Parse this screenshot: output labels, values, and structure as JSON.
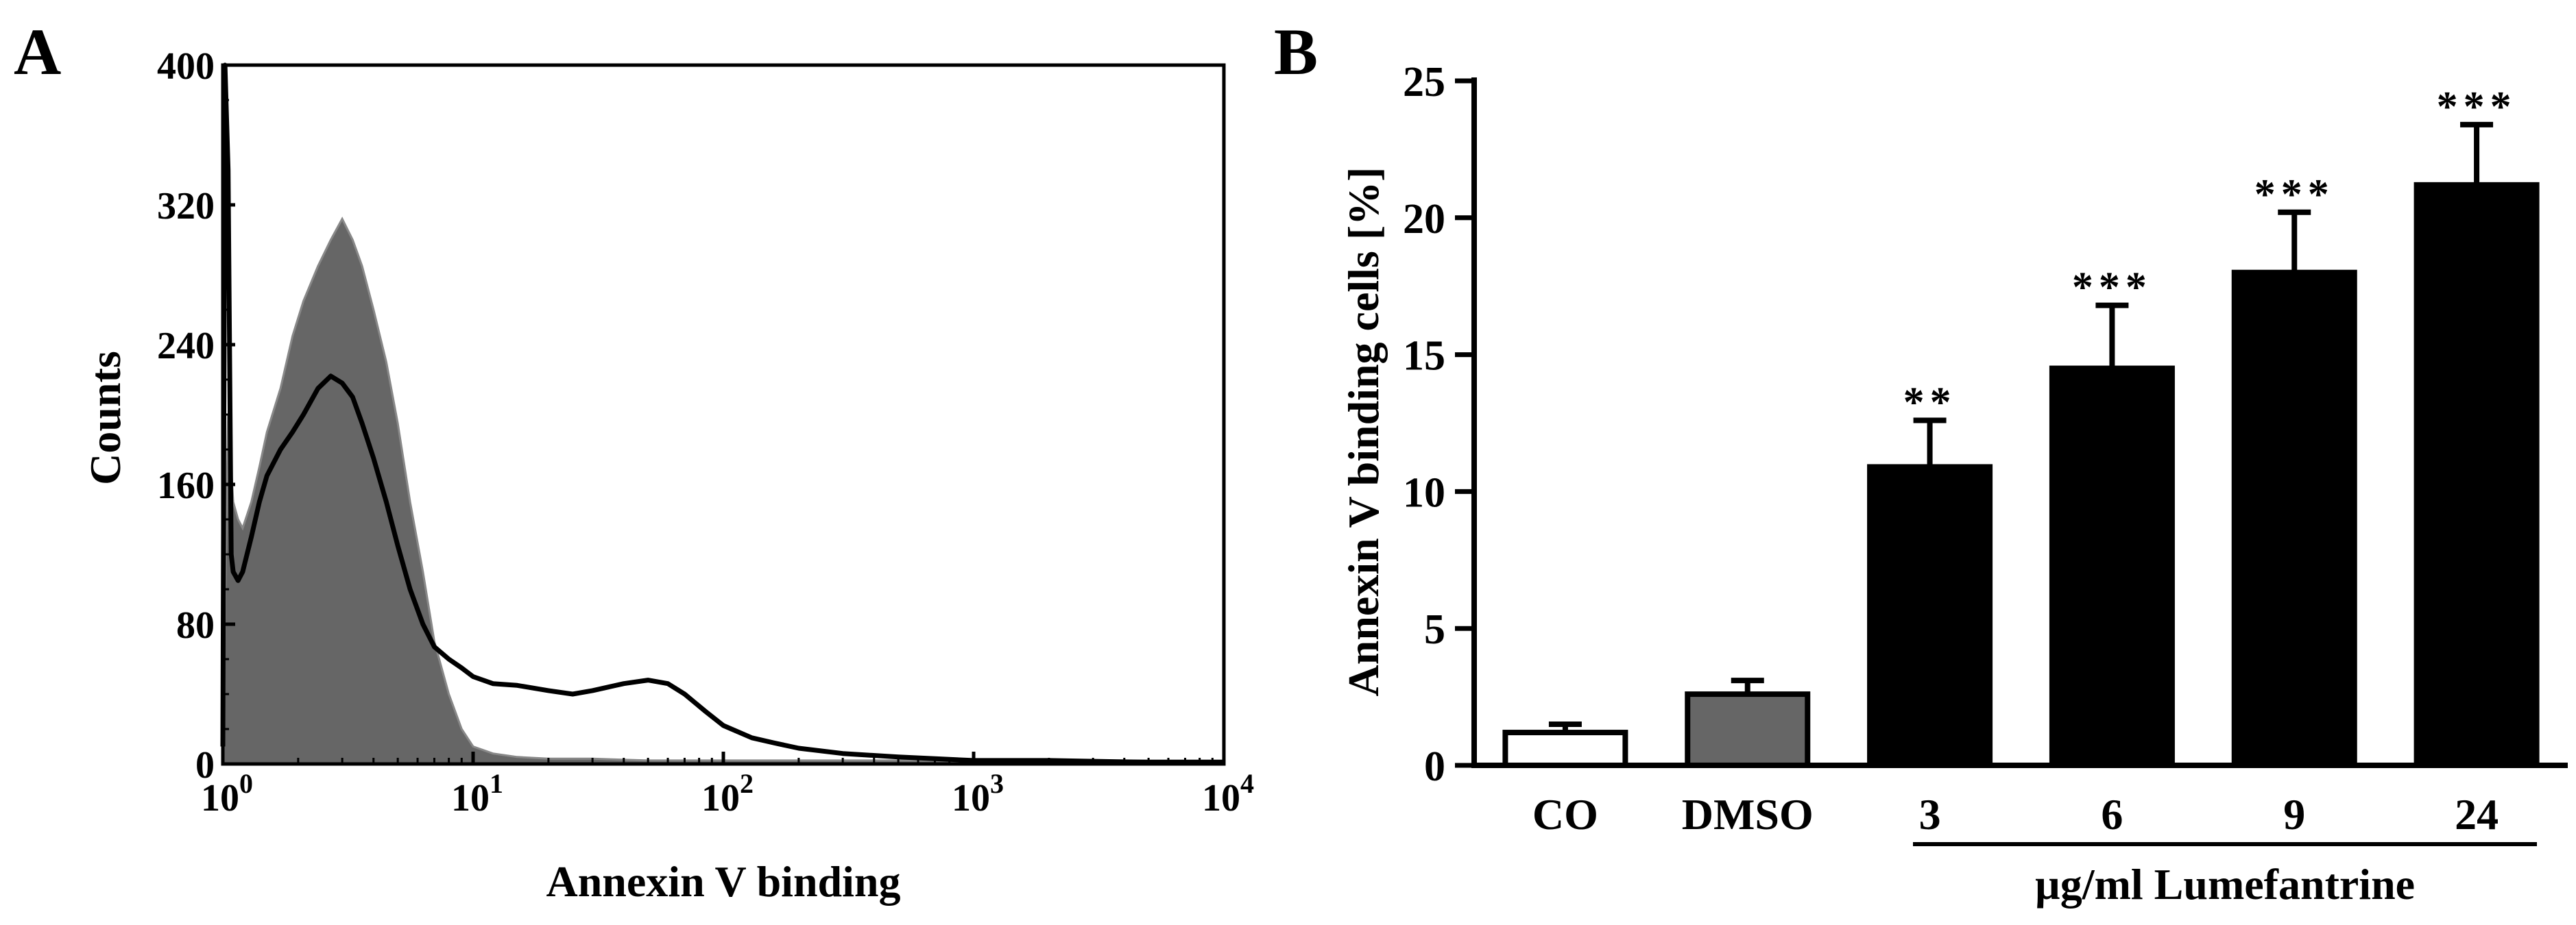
{
  "chart_data": [
    {
      "panel": "A",
      "type": "area",
      "xlabel": "Annexin V binding",
      "ylabel": "Counts",
      "x_scale": "log",
      "xlim": [
        1,
        10000
      ],
      "ylim": [
        0,
        400
      ],
      "x_ticks": [
        {
          "value": 1,
          "base": "10",
          "exp": "0"
        },
        {
          "value": 10,
          "base": "10",
          "exp": "1"
        },
        {
          "value": 100,
          "base": "10",
          "exp": "2"
        },
        {
          "value": 1000,
          "base": "10",
          "exp": "3"
        },
        {
          "value": 10000,
          "base": "10",
          "exp": "4"
        }
      ],
      "y_ticks": [
        "0",
        "80",
        "160",
        "240",
        "320",
        "400"
      ],
      "series": [
        {
          "style": "filled-gray",
          "color": "#666666",
          "x": [
            1.0,
            1.05,
            1.1,
            1.15,
            1.2,
            1.3,
            1.4,
            1.5,
            1.7,
            1.9,
            2.1,
            2.4,
            2.7,
            3.0,
            3.3,
            3.6,
            4.0,
            4.5,
            5.0,
            5.6,
            6.3,
            7.0,
            8.0,
            9.0,
            10,
            12,
            15,
            20,
            30,
            50,
            100,
            200,
            500,
            1000,
            3000,
            10000
          ],
          "y": [
            5,
            200,
            150,
            140,
            135,
            150,
            170,
            190,
            215,
            245,
            265,
            285,
            300,
            312,
            300,
            285,
            260,
            230,
            195,
            150,
            110,
            70,
            40,
            20,
            10,
            6,
            4,
            3,
            3,
            2,
            2,
            2,
            2,
            2,
            2,
            2
          ]
        },
        {
          "style": "black-line",
          "color": "#000000",
          "x": [
            1.0,
            1.02,
            1.05,
            1.08,
            1.1,
            1.15,
            1.2,
            1.3,
            1.4,
            1.5,
            1.7,
            1.9,
            2.1,
            2.4,
            2.7,
            3.0,
            3.3,
            3.6,
            4.0,
            4.5,
            5.0,
            5.6,
            6.3,
            7.0,
            8.0,
            9.0,
            10,
            12,
            15,
            20,
            25,
            30,
            40,
            50,
            60,
            70,
            85,
            100,
            130,
            160,
            200,
            300,
            500,
            700,
            1000,
            2000,
            5000,
            10000
          ],
          "y": [
            10,
            400,
            340,
            120,
            110,
            105,
            110,
            130,
            150,
            165,
            180,
            190,
            200,
            215,
            222,
            218,
            210,
            195,
            175,
            150,
            125,
            100,
            80,
            67,
            60,
            55,
            50,
            46,
            45,
            42,
            40,
            42,
            46,
            48,
            46,
            40,
            30,
            22,
            15,
            12,
            9,
            6,
            4,
            3,
            2,
            2,
            1,
            1
          ]
        }
      ]
    },
    {
      "panel": "B",
      "type": "bar",
      "ylabel": "Annexin V binding cells [%]",
      "ylim": [
        0,
        25
      ],
      "y_ticks": [
        "0",
        "5",
        "10",
        "15",
        "20",
        "25"
      ],
      "categories": [
        "CO",
        "DMSO",
        "3",
        "6",
        "9",
        "24"
      ],
      "values": [
        1.2,
        2.6,
        10.9,
        14.5,
        18.0,
        21.2
      ],
      "errors": [
        0.3,
        0.5,
        1.7,
        2.3,
        2.2,
        2.2
      ],
      "significance": [
        "",
        "",
        "**",
        "***",
        "***",
        "***"
      ],
      "bar_fills": [
        "#ffffff",
        "#666666",
        "#000000",
        "#000000",
        "#000000",
        "#000000"
      ],
      "group_label": "µg/ml Lumefantrine"
    }
  ]
}
